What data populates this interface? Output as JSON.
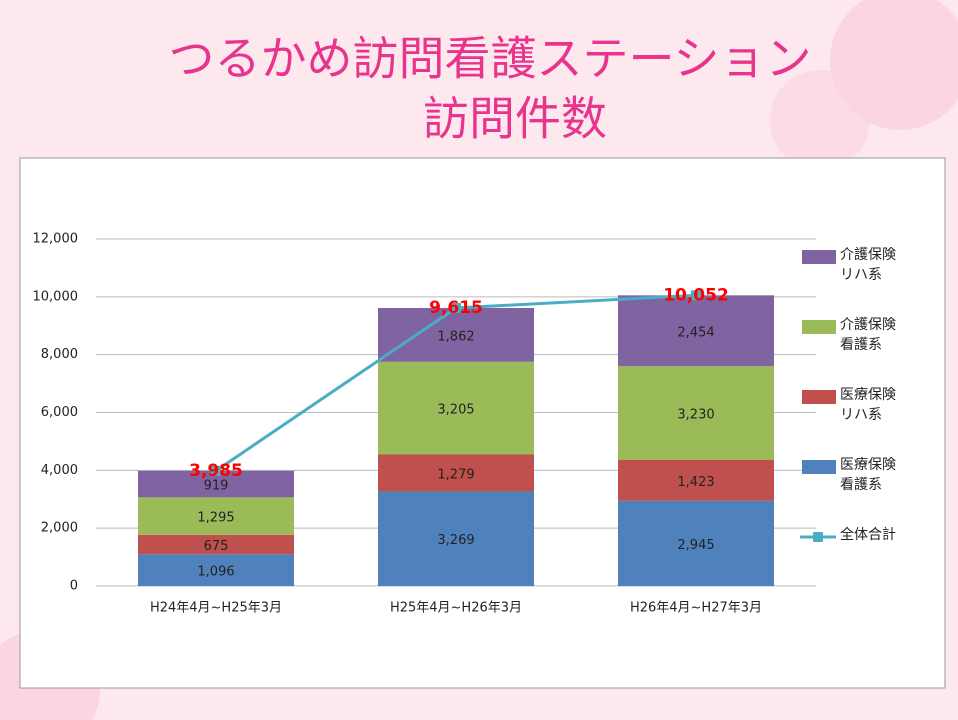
{
  "chart_data": {
    "type": "bar",
    "stacked": true,
    "title": "つるかめ訪問看護ステーション",
    "subtitle": "訪問件数",
    "categories": [
      "H24年4月~H25年3月",
      "H25年4月~H26年3月",
      "H26年4月~H27年3月"
    ],
    "series": [
      {
        "name": "医療保険看護系",
        "color": "#4f81bd",
        "values": [
          1096,
          3269,
          2945
        ],
        "value_labels": [
          "1,096",
          "3,269",
          "2,945"
        ]
      },
      {
        "name": "医療保険リハ系",
        "color": "#c0504d",
        "values": [
          675,
          1279,
          1423
        ],
        "value_labels": [
          "675",
          "1,279",
          "1,423"
        ]
      },
      {
        "name": "介護保険看護系",
        "color": "#9bbb59",
        "values": [
          1295,
          3205,
          3230
        ],
        "value_labels": [
          "1,295",
          "3,205",
          "3,230"
        ]
      },
      {
        "name": "介護保険リハ系",
        "color": "#8064a2",
        "values": [
          919,
          1862,
          2454
        ],
        "value_labels": [
          "919",
          "1,862",
          "2,454"
        ]
      },
      {
        "name": "全体合計",
        "type": "line",
        "color": "#4bacc6",
        "values": [
          3985,
          9615,
          10052
        ],
        "value_labels": [
          "3,985",
          "9,615",
          "10,052"
        ]
      }
    ],
    "ylim": [
      0,
      12000
    ],
    "yticks": [
      0,
      {
        "value": 2000,
        "label": "2,000"
      },
      {
        "value": 4000,
        "label": "4,000"
      },
      {
        "value": 6000,
        "label": "6,000"
      },
      {
        "value": 8000,
        "label": "8,000"
      },
      {
        "value": 10000,
        "label": "10,000"
      },
      {
        "value": 12000,
        "label": "12,000"
      }
    ],
    "grid": true,
    "legend": "right"
  }
}
